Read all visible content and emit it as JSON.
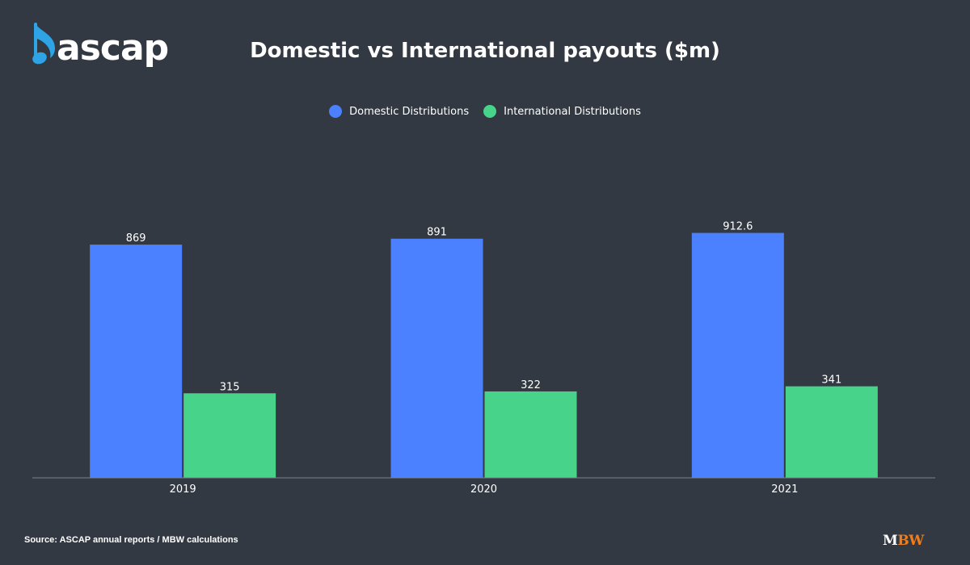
{
  "brand": {
    "logo_text": "ascap",
    "credit_m": "M",
    "credit_bw": "BW",
    "credit_color": "#f07d1a"
  },
  "title": "Domestic vs International payouts ($m)",
  "source": "Source: ASCAP annual reports / MBW calculations",
  "colors": {
    "background": "#333942",
    "logo_note": "#2ea3e6"
  },
  "chart_data": {
    "type": "bar",
    "title": "Domestic vs International payouts ($m)",
    "categories": [
      "2019",
      "2020",
      "2021"
    ],
    "series": [
      {
        "name": "Domestic Distributions",
        "color": "#4b80fe",
        "values": [
          869,
          891,
          912.6
        ],
        "labels": [
          "869",
          "891",
          "912.6"
        ]
      },
      {
        "name": "International Distributions",
        "color": "#48d38b",
        "values": [
          315,
          322,
          341
        ],
        "labels": [
          "315",
          "322",
          "341"
        ]
      }
    ],
    "ylim": [
      0,
      1000
    ],
    "grid": false,
    "legend": "top-center",
    "xlabel": "",
    "ylabel": ""
  }
}
